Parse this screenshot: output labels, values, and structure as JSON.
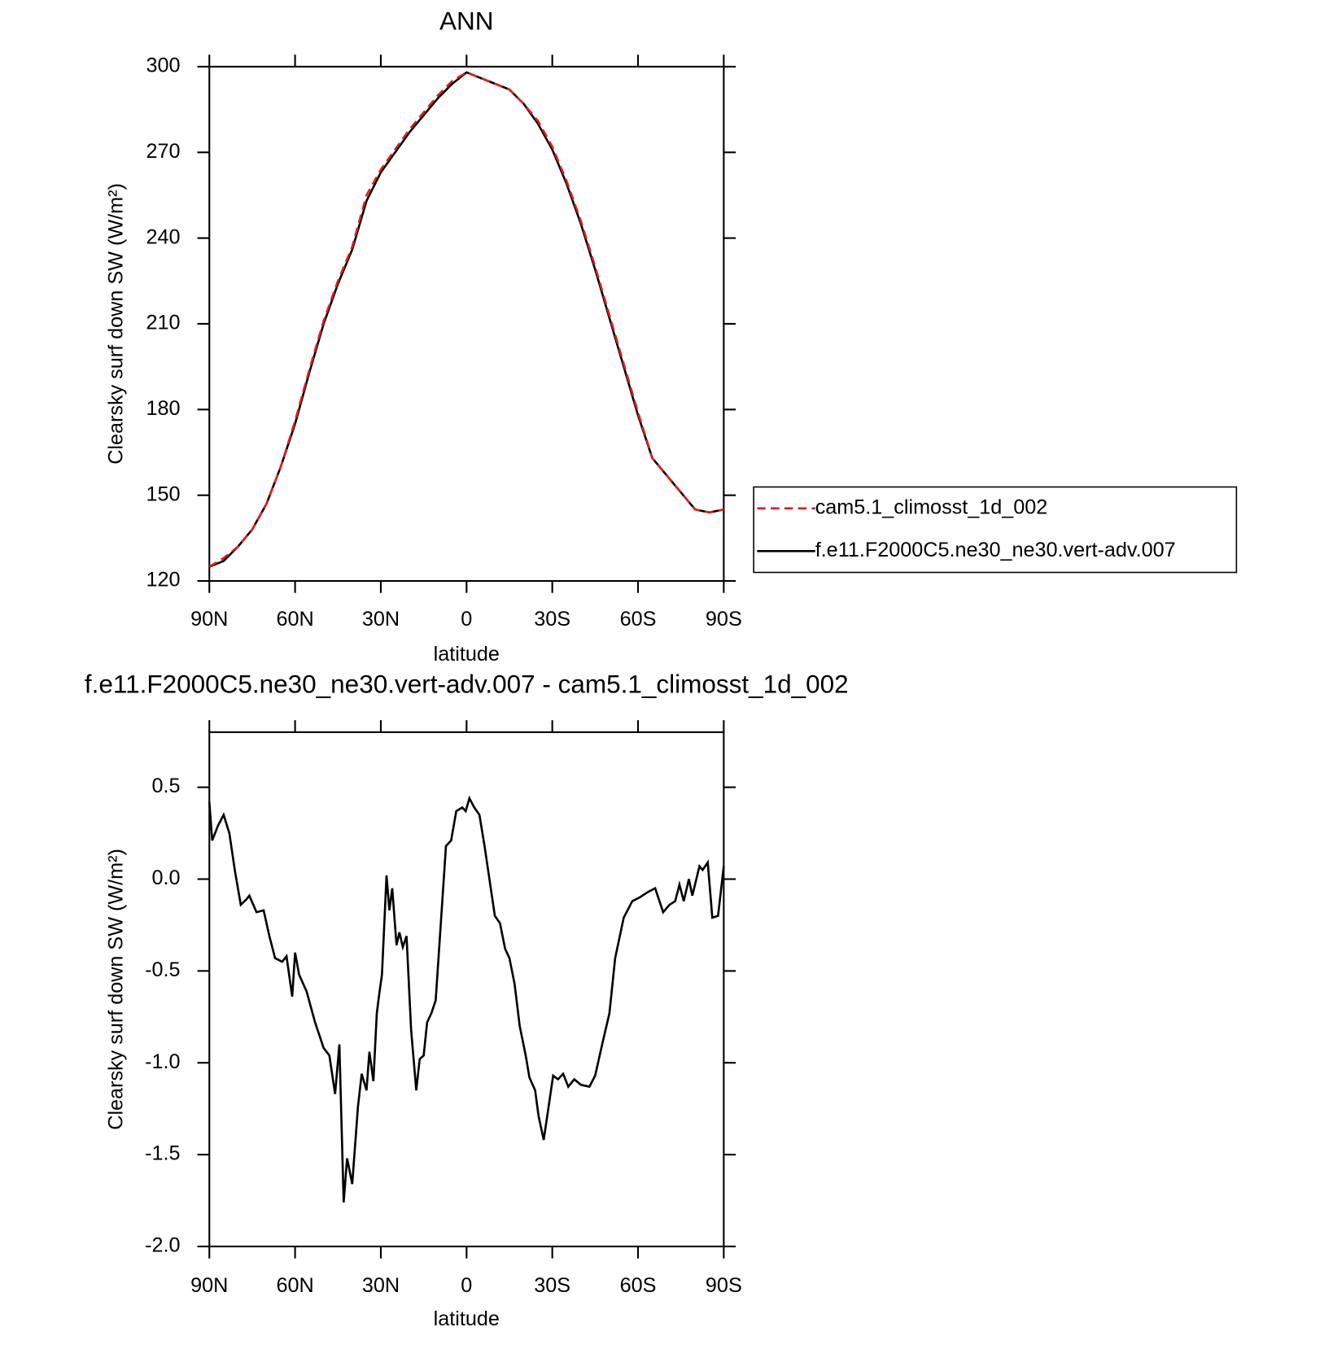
{
  "chart_data": [
    {
      "type": "line",
      "title": "ANN",
      "xlabel": "latitude",
      "ylabel": "Clearsky surf down SW (W/m²)",
      "x": [
        90,
        85,
        80,
        75,
        70,
        65,
        60,
        55,
        50,
        45,
        40,
        35,
        30,
        25,
        20,
        15,
        10,
        5,
        0,
        -5,
        -10,
        -15,
        -20,
        -25,
        -30,
        -35,
        -40,
        -45,
        -50,
        -55,
        -60,
        -65,
        -70,
        -75,
        -80,
        -85,
        -90
      ],
      "series": [
        {
          "name": "cam5.1_climosst_1d_002",
          "color": "#e41a1c",
          "dash": true,
          "values": [
            125,
            128,
            132,
            138,
            147,
            160,
            176,
            194,
            211,
            225,
            237,
            255,
            264,
            271,
            278,
            284,
            290,
            295,
            298,
            296,
            294,
            292,
            287,
            281,
            272,
            260,
            246,
            230,
            213,
            196,
            179,
            163,
            157,
            151,
            145,
            144,
            145
          ]
        },
        {
          "name": "f.e11.F2000C5.ne30_ne30.vert-adv.007",
          "color": "#000000",
          "dash": false,
          "values": [
            125,
            127,
            132,
            138,
            147,
            160,
            175,
            193,
            210,
            224,
            236,
            253,
            263,
            270,
            277,
            283,
            289,
            294,
            298,
            296,
            294,
            292,
            287,
            280,
            271,
            259,
            245,
            229,
            212,
            195,
            178,
            163,
            157,
            151,
            145,
            144,
            145
          ]
        }
      ],
      "xlim": [
        90,
        -90
      ],
      "xticks": [
        {
          "value": 90,
          "label": "90N"
        },
        {
          "value": 60,
          "label": "60N"
        },
        {
          "value": 30,
          "label": "30N"
        },
        0,
        {
          "value": -30,
          "label": "30S"
        },
        {
          "value": -60,
          "label": "60S"
        },
        {
          "value": -90,
          "label": "90S"
        }
      ],
      "ylim": [
        120,
        300
      ],
      "yticks": [
        120,
        150,
        180,
        210,
        240,
        270,
        300
      ],
      "legend": "right"
    },
    {
      "type": "line",
      "title": "f.e11.F2000C5.ne30_ne30.vert-adv.007 - cam5.1_climosst_1d_002",
      "xlabel": "latitude",
      "ylabel": "Clearsky surf down SW (W/m²)",
      "x": [
        90,
        89,
        87,
        85,
        83,
        81,
        79,
        77,
        76,
        73.5,
        71,
        69,
        67,
        64.5,
        63,
        61,
        60,
        58.6,
        56,
        53,
        50,
        48,
        46,
        44.5,
        43,
        41.8,
        40,
        38,
        36.7,
        35,
        34,
        32.6,
        31.4,
        30.5,
        29.6,
        28,
        27,
        26,
        24.5,
        23.5,
        22.3,
        21,
        19.4,
        17.6,
        16.4,
        15,
        13.8,
        12.3,
        10.8,
        9,
        7.2,
        5.4,
        3.6,
        1.5,
        0.3,
        -1,
        -2.7,
        -4.5,
        -6.3,
        -8,
        -9.9,
        -11.7,
        -13.5,
        -15,
        -16.8,
        -18.6,
        -20.7,
        -22,
        -24,
        -25.2,
        -27,
        -28.8,
        -30.3,
        -32,
        -33.8,
        -35.6,
        -37.7,
        -40,
        -43,
        -45,
        -47.6,
        -50,
        -52,
        -55,
        -58,
        -60.5,
        -63.5,
        -66,
        -68.8,
        -71,
        -73,
        -74.5,
        -76,
        -77.8,
        -79,
        -81.5,
        -82.6,
        -84.4,
        -86,
        -88,
        -90
      ],
      "values": [
        0.42,
        0.21,
        0.29,
        0.35,
        0.25,
        0.04,
        -0.14,
        -0.11,
        -0.09,
        -0.18,
        -0.17,
        -0.31,
        -0.43,
        -0.45,
        -0.42,
        -0.64,
        -0.4,
        -0.52,
        -0.61,
        -0.78,
        -0.92,
        -0.96,
        -1.17,
        -0.9,
        -1.76,
        -1.52,
        -1.66,
        -1.24,
        -1.06,
        -1.15,
        -0.94,
        -1.1,
        -0.73,
        -0.62,
        -0.52,
        0.02,
        -0.17,
        -0.05,
        -0.36,
        -0.29,
        -0.37,
        -0.31,
        -0.82,
        -1.15,
        -0.98,
        -0.96,
        -0.78,
        -0.73,
        -0.66,
        -0.24,
        0.18,
        0.21,
        0.37,
        0.39,
        0.37,
        0.44,
        0.39,
        0.35,
        0.18,
        0.0,
        -0.2,
        -0.24,
        -0.38,
        -0.43,
        -0.57,
        -0.8,
        -0.96,
        -1.08,
        -1.15,
        -1.29,
        -1.42,
        -1.23,
        -1.07,
        -1.09,
        -1.06,
        -1.13,
        -1.09,
        -1.12,
        -1.13,
        -1.07,
        -0.89,
        -0.73,
        -0.43,
        -0.21,
        -0.12,
        -0.1,
        -0.07,
        -0.05,
        -0.18,
        -0.14,
        -0.12,
        -0.03,
        -0.12,
        0.0,
        -0.09,
        0.07,
        0.05,
        0.09,
        -0.21,
        -0.2,
        0.07
      ],
      "color": "#000000",
      "xlim": [
        90,
        -90
      ],
      "xticks": [
        {
          "value": 90,
          "label": "90N"
        },
        {
          "value": 60,
          "label": "60N"
        },
        {
          "value": 30,
          "label": "30N"
        },
        0,
        {
          "value": -30,
          "label": "30S"
        },
        {
          "value": -60,
          "label": "60S"
        },
        {
          "value": -90,
          "label": "90S"
        }
      ],
      "ylim": [
        -2.0,
        0.8
      ],
      "yticks": [
        {
          "value": -2.0,
          "label": "-2.0"
        },
        {
          "value": -1.5,
          "label": "-1.5"
        },
        {
          "value": -1.0,
          "label": "-1.0"
        },
        {
          "value": -0.5,
          "label": "-0.5"
        },
        {
          "value": 0.0,
          "label": "0.0"
        },
        {
          "value": 0.5,
          "label": "0.5"
        }
      ]
    }
  ]
}
